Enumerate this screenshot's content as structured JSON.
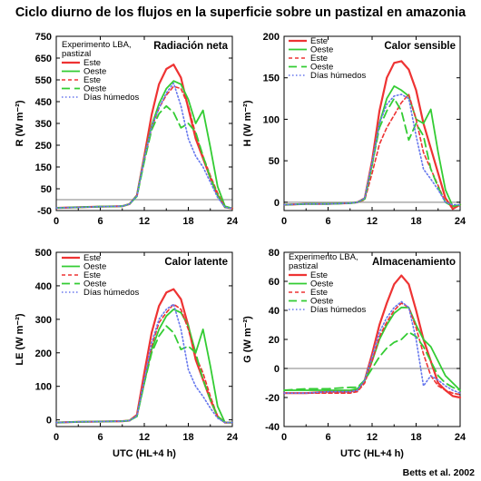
{
  "figure": {
    "title": "Ciclo diurno de los flujos en la superficie sobre un pastizal en amazonia",
    "credit": "Betts et al. 2002"
  },
  "series_styles": [
    {
      "key": "este_solid",
      "color": "#ee3333",
      "dash": "solid",
      "width": 2.2
    },
    {
      "key": "oeste_solid",
      "color": "#33cc33",
      "dash": "solid",
      "width": 1.8
    },
    {
      "key": "este_dashed",
      "color": "#ee3333",
      "dash": "short-dash",
      "width": 1.6
    },
    {
      "key": "oeste_dashed",
      "color": "#33cc33",
      "dash": "long-dash",
      "width": 1.8
    },
    {
      "key": "humedos_dotted",
      "color": "#6677ee",
      "dash": "dotted",
      "width": 1.6
    }
  ],
  "chart_data": [
    {
      "type": "line",
      "title": "Radiación neta",
      "annotation": [
        "Experimento LBA,",
        "pastizal"
      ],
      "xlabel": "",
      "ylabel": "R  (W m⁻²)",
      "xlim": [
        0,
        24
      ],
      "ylim": [
        -50,
        750
      ],
      "xticks": [
        0,
        6,
        12,
        18,
        24
      ],
      "yticks": [
        -50,
        50,
        150,
        250,
        350,
        450,
        550,
        650,
        750
      ],
      "zero_line": true,
      "x": [
        0,
        3,
        6,
        9,
        10,
        11,
        12,
        13,
        14,
        15,
        16,
        17,
        18,
        19,
        20,
        21,
        22,
        23,
        24
      ],
      "series": [
        {
          "name": "Este",
          "style": "este_solid",
          "values": [
            -38,
            -35,
            -32,
            -30,
            -20,
            20,
            200,
            390,
            530,
            600,
            620,
            560,
            420,
            280,
            190,
            100,
            20,
            -35,
            -40
          ]
        },
        {
          "name": "Oeste",
          "style": "oeste_solid",
          "values": [
            -38,
            -35,
            -32,
            -30,
            -20,
            20,
            190,
            340,
            440,
            510,
            545,
            530,
            460,
            350,
            410,
            240,
            60,
            -30,
            -40
          ]
        },
        {
          "name": "Este",
          "style": "este_dashed",
          "values": [
            -38,
            -35,
            -32,
            -30,
            -20,
            18,
            180,
            330,
            420,
            480,
            520,
            510,
            430,
            300,
            200,
            110,
            30,
            -35,
            -40
          ]
        },
        {
          "name": "Oeste",
          "style": "oeste_dashed",
          "values": [
            -38,
            -35,
            -32,
            -30,
            -20,
            15,
            175,
            320,
            395,
            430,
            400,
            330,
            350,
            310,
            200,
            100,
            20,
            -35,
            -40
          ]
        },
        {
          "name": "Días húmedos",
          "style": "humedos_dotted",
          "values": [
            -38,
            -35,
            -32,
            -30,
            -20,
            18,
            190,
            335,
            420,
            490,
            535,
            430,
            280,
            200,
            150,
            80,
            10,
            -35,
            -40
          ]
        }
      ],
      "legend_entries": [
        "Este",
        "Oeste",
        "Este",
        "Oeste",
        "Días húmedos"
      ]
    },
    {
      "type": "line",
      "title": "Calor sensible",
      "xlabel": "",
      "ylabel": "H  (W m⁻²)",
      "xlim": [
        0,
        24
      ],
      "ylim": [
        -10,
        200
      ],
      "xticks": [
        0,
        6,
        12,
        18,
        24
      ],
      "yticks": [
        0,
        50,
        100,
        150,
        200
      ],
      "zero_line": true,
      "x": [
        0,
        3,
        6,
        9,
        10,
        11,
        12,
        13,
        14,
        15,
        16,
        17,
        18,
        19,
        20,
        21,
        22,
        23,
        24
      ],
      "series": [
        {
          "name": "Este",
          "style": "este_solid",
          "values": [
            -3,
            -2,
            -2,
            -1,
            0,
            5,
            50,
            110,
            150,
            168,
            170,
            160,
            135,
            95,
            65,
            35,
            5,
            -8,
            -3
          ]
        },
        {
          "name": "Oeste",
          "style": "oeste_solid",
          "values": [
            -3,
            -2,
            -2,
            -1,
            0,
            4,
            45,
            95,
            125,
            140,
            135,
            128,
            100,
            95,
            112,
            60,
            15,
            -5,
            -3
          ]
        },
        {
          "name": "Este",
          "style": "este_dashed",
          "values": [
            -3,
            -2,
            -2,
            -1,
            0,
            3,
            35,
            70,
            90,
            105,
            120,
            130,
            100,
            60,
            40,
            20,
            0,
            -5,
            -3
          ]
        },
        {
          "name": "Oeste",
          "style": "oeste_dashed",
          "values": [
            -3,
            -2,
            -2,
            -1,
            0,
            4,
            45,
            90,
            110,
            125,
            110,
            75,
            95,
            80,
            40,
            18,
            0,
            -5,
            -3
          ]
        },
        {
          "name": "Días húmedos",
          "style": "humedos_dotted",
          "values": [
            -3,
            -2,
            -2,
            -1,
            0,
            5,
            48,
            95,
            118,
            128,
            130,
            125,
            80,
            40,
            28,
            15,
            0,
            -3,
            -3
          ]
        }
      ],
      "legend_entries": [
        "Este",
        "Oeste",
        "Este",
        "Oeste",
        "Días húmedos"
      ]
    },
    {
      "type": "line",
      "title": "Calor latente",
      "xlabel": "UTC (HL+4 h)",
      "ylabel": "LE  (W m⁻²)",
      "xlim": [
        0,
        24
      ],
      "ylim": [
        -20,
        500
      ],
      "xticks": [
        0,
        6,
        12,
        18,
        24
      ],
      "yticks": [
        0,
        100,
        200,
        300,
        400,
        500
      ],
      "zero_line": false,
      "x": [
        0,
        3,
        6,
        9,
        10,
        11,
        12,
        13,
        14,
        15,
        16,
        17,
        18,
        19,
        20,
        21,
        22,
        23,
        24
      ],
      "series": [
        {
          "name": "Este",
          "style": "este_solid",
          "values": [
            -8,
            -6,
            -5,
            -4,
            -2,
            15,
            140,
            260,
            340,
            380,
            390,
            360,
            280,
            180,
            120,
            60,
            10,
            -8,
            -8
          ]
        },
        {
          "name": "Oeste",
          "style": "oeste_solid",
          "values": [
            -8,
            -6,
            -5,
            -4,
            -2,
            12,
            110,
            210,
            270,
            310,
            330,
            320,
            280,
            200,
            270,
            160,
            40,
            -8,
            -8
          ]
        },
        {
          "name": "Este",
          "style": "este_dashed",
          "values": [
            -8,
            -6,
            -5,
            -4,
            -2,
            12,
            115,
            220,
            290,
            320,
            345,
            330,
            270,
            190,
            140,
            70,
            10,
            -8,
            -8
          ]
        },
        {
          "name": "Oeste",
          "style": "oeste_dashed",
          "values": [
            -8,
            -6,
            -5,
            -4,
            -2,
            10,
            110,
            200,
            250,
            280,
            260,
            210,
            220,
            200,
            120,
            60,
            10,
            -8,
            -8
          ]
        },
        {
          "name": "Días húmedos",
          "style": "humedos_dotted",
          "values": [
            -8,
            -6,
            -5,
            -4,
            -2,
            12,
            120,
            230,
            300,
            330,
            345,
            270,
            150,
            100,
            70,
            35,
            5,
            -8,
            -8
          ]
        }
      ],
      "legend_entries": [
        "Este",
        "Oeste",
        "Este",
        "Oeste",
        "Días húmedos"
      ]
    },
    {
      "type": "line",
      "title": "Almacenamiento",
      "annotation": [
        "Experimento LBA,",
        "pastizal"
      ],
      "xlabel": "UTC (HL+4 h)",
      "ylabel": "G  (W m⁻²)",
      "xlim": [
        0,
        24
      ],
      "ylim": [
        -40,
        80
      ],
      "xticks": [
        0,
        6,
        12,
        18,
        24
      ],
      "yticks": [
        -40,
        -20,
        0,
        20,
        40,
        60,
        80
      ],
      "zero_line": true,
      "x": [
        0,
        3,
        6,
        9,
        10,
        11,
        12,
        13,
        14,
        15,
        16,
        17,
        18,
        19,
        20,
        21,
        22,
        23,
        24
      ],
      "series": [
        {
          "name": "Este",
          "style": "este_solid",
          "values": [
            -17,
            -17,
            -16,
            -16,
            -15,
            -8,
            10,
            30,
            45,
            58,
            64,
            58,
            40,
            20,
            5,
            -10,
            -15,
            -19,
            -20
          ]
        },
        {
          "name": "Oeste",
          "style": "oeste_solid",
          "values": [
            -15,
            -15,
            -15,
            -15,
            -14,
            -8,
            5,
            20,
            30,
            38,
            42,
            42,
            30,
            20,
            15,
            5,
            -5,
            -10,
            -15
          ]
        },
        {
          "name": "Este",
          "style": "este_dashed",
          "values": [
            -17,
            -17,
            -17,
            -17,
            -16,
            -10,
            5,
            22,
            32,
            40,
            45,
            42,
            28,
            10,
            -5,
            -12,
            -15,
            -17,
            -18
          ]
        },
        {
          "name": "Oeste",
          "style": "oeste_dashed",
          "values": [
            -15,
            -14,
            -14,
            -13,
            -13,
            -8,
            0,
            8,
            14,
            18,
            20,
            25,
            22,
            15,
            5,
            -5,
            -10,
            -13,
            -15
          ]
        },
        {
          "name": "Días húmedos",
          "style": "humedos_dotted",
          "values": [
            -17,
            -17,
            -16,
            -16,
            -15,
            -8,
            8,
            25,
            35,
            42,
            46,
            42,
            20,
            -12,
            -5,
            -8,
            -12,
            -15,
            -17
          ]
        }
      ],
      "legend_entries": [
        "Este",
        "Oeste",
        "Este",
        "Oeste",
        "Días húmedos"
      ]
    }
  ]
}
